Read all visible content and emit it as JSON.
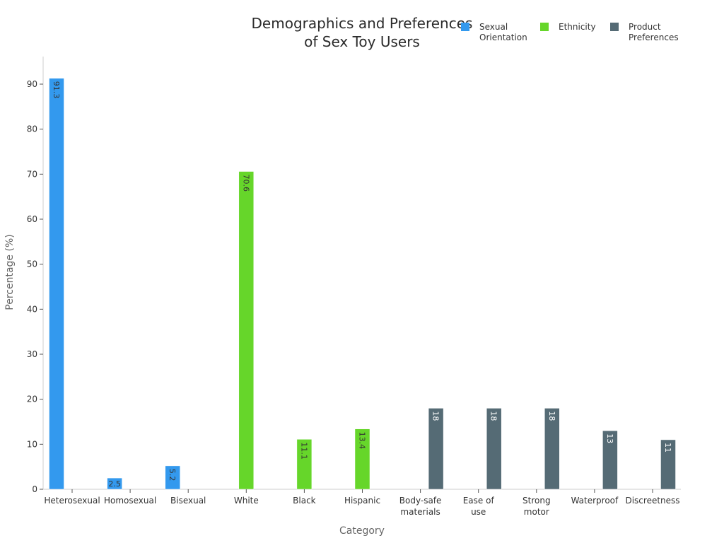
{
  "chart_data": {
    "type": "bar",
    "title": [
      "Demographics and Preferences",
      "of Sex Toy Users"
    ],
    "xlabel": "Category",
    "ylabel": "Percentage (%)",
    "ylim": [
      0,
      96
    ],
    "yticks": [
      0,
      10,
      20,
      30,
      40,
      50,
      60,
      70,
      80,
      90
    ],
    "grid": false,
    "legend_position": "top-right",
    "categories": [
      [
        "Heterosexual"
      ],
      [
        "Homosexual"
      ],
      [
        "Bisexual"
      ],
      [
        "White"
      ],
      [
        "Black"
      ],
      [
        "Hispanic"
      ],
      [
        "Body-safe",
        "materials"
      ],
      [
        "Ease of",
        "use"
      ],
      [
        "Strong",
        "motor"
      ],
      [
        "Waterproof"
      ],
      [
        "Discreetness"
      ]
    ],
    "series": [
      {
        "name": [
          "Sexual",
          "Orientation"
        ],
        "color": "#3399ee",
        "label_color": "#333333",
        "values": [
          91.3,
          2.5,
          5.2,
          null,
          null,
          null,
          null,
          null,
          null,
          null,
          null
        ]
      },
      {
        "name": [
          "Ethnicity"
        ],
        "color": "#66d62a",
        "label_color": "#333333",
        "values": [
          null,
          null,
          null,
          70.6,
          11.1,
          13.4,
          null,
          null,
          null,
          null,
          null
        ]
      },
      {
        "name": [
          "Product",
          "Preferences"
        ],
        "color": "#556b75",
        "label_color": "#ffffff",
        "values": [
          null,
          null,
          null,
          null,
          null,
          null,
          18,
          18,
          18,
          13,
          11
        ]
      }
    ]
  }
}
